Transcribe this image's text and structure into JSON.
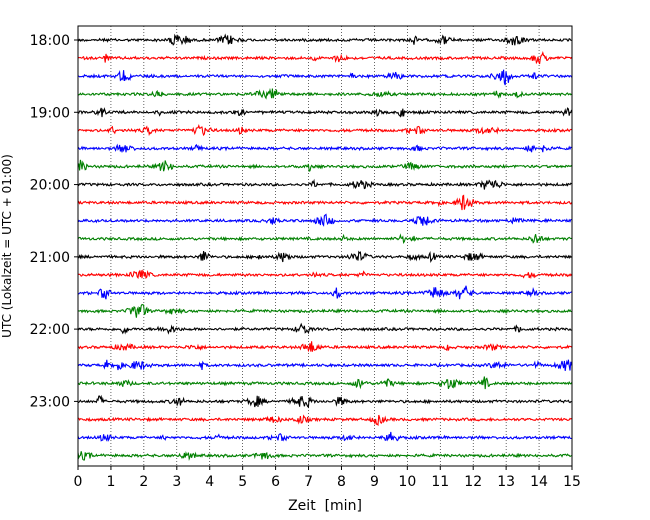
{
  "chart_data": {
    "type": "line",
    "title": "",
    "xlabel": "Zeit  [min]",
    "ylabel": "UTC (Lokalzeit = UTC + 01:00)",
    "xlim": [
      0,
      15
    ],
    "x_ticks": [
      0,
      1,
      2,
      3,
      4,
      5,
      6,
      7,
      8,
      9,
      10,
      11,
      12,
      13,
      14,
      15
    ],
    "x_tick_labels": [
      "0",
      "1",
      "2",
      "3",
      "4",
      "5",
      "6",
      "7",
      "8",
      "9",
      "10",
      "11",
      "12",
      "13",
      "14",
      "15"
    ],
    "y_tick_labels": [
      "18:00",
      "19:00",
      "20:00",
      "21:00",
      "22:00",
      "23:00"
    ],
    "grid": "vertical dotted lines at each minute",
    "trace_colors": [
      "#000000",
      "#ff0000",
      "#0000ff",
      "#008000"
    ],
    "series": [
      {
        "start": "18:00",
        "color": "#000000"
      },
      {
        "start": "18:15",
        "color": "#ff0000"
      },
      {
        "start": "18:30",
        "color": "#0000ff"
      },
      {
        "start": "18:45",
        "color": "#008000"
      },
      {
        "start": "19:00",
        "color": "#000000"
      },
      {
        "start": "19:15",
        "color": "#ff0000"
      },
      {
        "start": "19:30",
        "color": "#0000ff"
      },
      {
        "start": "19:45",
        "color": "#008000"
      },
      {
        "start": "20:00",
        "color": "#000000"
      },
      {
        "start": "20:15",
        "color": "#ff0000"
      },
      {
        "start": "20:30",
        "color": "#0000ff"
      },
      {
        "start": "20:45",
        "color": "#008000"
      },
      {
        "start": "21:00",
        "color": "#000000"
      },
      {
        "start": "21:15",
        "color": "#ff0000"
      },
      {
        "start": "21:30",
        "color": "#0000ff"
      },
      {
        "start": "21:45",
        "color": "#008000"
      },
      {
        "start": "22:00",
        "color": "#000000"
      },
      {
        "start": "22:15",
        "color": "#ff0000"
      },
      {
        "start": "22:30",
        "color": "#0000ff"
      },
      {
        "start": "22:45",
        "color": "#008000"
      },
      {
        "start": "23:00",
        "color": "#000000"
      },
      {
        "start": "23:15",
        "color": "#ff0000"
      },
      {
        "start": "23:30",
        "color": "#0000ff"
      },
      {
        "start": "23:45",
        "color": "#008000"
      }
    ]
  }
}
